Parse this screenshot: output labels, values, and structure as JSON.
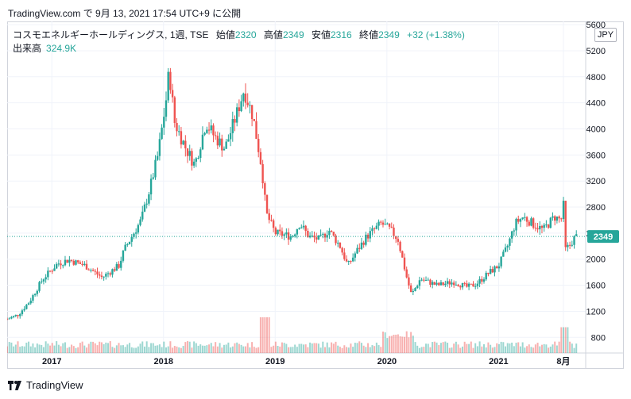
{
  "header": {
    "caption": "TradingView.com で 9月 13, 2021 17:54 UTC+9 に公開"
  },
  "legend": {
    "symbol": "コスモエネルギーホールディングス, 1週, TSE",
    "open_label": "始値",
    "open_value": "2320",
    "high_label": "高値",
    "high_value": "2349",
    "low_label": "安値",
    "low_value": "2316",
    "close_label": "終値",
    "close_value": "2349",
    "change": "+32 (+1.38%)",
    "volume_label": "出来高",
    "volume_value": "324.9K"
  },
  "currency": "JPY",
  "last_price": "2349",
  "footer": {
    "brand": "TradingView"
  },
  "colors": {
    "up": "#26a69a",
    "down": "#ef5350",
    "grid": "#f0f3fa",
    "axis_text": "#131722"
  },
  "chart_data": {
    "type": "candlestick",
    "title": "コスモエネルギーホールディングス, 1週, TSE",
    "xlabel": "",
    "ylabel": "",
    "ylim": [
      560,
      5650
    ],
    "y_ticks": [
      800,
      1200,
      1600,
      2000,
      2400,
      2800,
      3200,
      3600,
      4000,
      4400,
      4800,
      5200,
      5600
    ],
    "x_ticks": [
      {
        "label": "2017",
        "value": 2017.0
      },
      {
        "label": "2018",
        "value": 2018.0
      },
      {
        "label": "2019",
        "value": 2019.0
      },
      {
        "label": "2020",
        "value": 2020.0
      },
      {
        "label": "2021",
        "value": 2021.0
      },
      {
        "label": "8月",
        "value": 2021.58
      }
    ],
    "x_range": [
      2016.6,
      2021.78
    ],
    "price_path": [
      [
        2016.6,
        1080
      ],
      [
        2016.7,
        1150
      ],
      [
        2016.8,
        1350
      ],
      [
        2016.92,
        1700
      ],
      [
        2017.05,
        1930
      ],
      [
        2017.15,
        1990
      ],
      [
        2017.3,
        1900
      ],
      [
        2017.45,
        1720
      ],
      [
        2017.6,
        1900
      ],
      [
        2017.65,
        2150
      ],
      [
        2017.8,
        2600
      ],
      [
        2017.88,
        3100
      ],
      [
        2017.95,
        3600
      ],
      [
        2018.02,
        4400
      ],
      [
        2018.05,
        4900
      ],
      [
        2018.1,
        4100
      ],
      [
        2018.2,
        3700
      ],
      [
        2018.28,
        3450
      ],
      [
        2018.38,
        4100
      ],
      [
        2018.45,
        3900
      ],
      [
        2018.55,
        3700
      ],
      [
        2018.65,
        4200
      ],
      [
        2018.72,
        4600
      ],
      [
        2018.8,
        4200
      ],
      [
        2018.88,
        3400
      ],
      [
        2018.92,
        2700
      ],
      [
        2019.0,
        2400
      ],
      [
        2019.15,
        2350
      ],
      [
        2019.22,
        2550
      ],
      [
        2019.3,
        2350
      ],
      [
        2019.4,
        2300
      ],
      [
        2019.48,
        2450
      ],
      [
        2019.58,
        2200
      ],
      [
        2019.65,
        1900
      ],
      [
        2019.72,
        2100
      ],
      [
        2019.82,
        2350
      ],
      [
        2019.95,
        2550
      ],
      [
        2020.03,
        2450
      ],
      [
        2020.1,
        2300
      ],
      [
        2020.18,
        1700
      ],
      [
        2020.22,
        1450
      ],
      [
        2020.3,
        1700
      ],
      [
        2020.45,
        1600
      ],
      [
        2020.6,
        1650
      ],
      [
        2020.72,
        1570
      ],
      [
        2020.8,
        1620
      ],
      [
        2020.92,
        1800
      ],
      [
        2021.0,
        1900
      ],
      [
        2021.08,
        2200
      ],
      [
        2021.15,
        2550
      ],
      [
        2021.22,
        2650
      ],
      [
        2021.3,
        2550
      ],
      [
        2021.4,
        2450
      ],
      [
        2021.5,
        2650
      ],
      [
        2021.56,
        2600
      ],
      [
        2021.58,
        2850
      ],
      [
        2021.6,
        2150
      ],
      [
        2021.63,
        2200
      ],
      [
        2021.68,
        2330
      ],
      [
        2021.7,
        2349
      ]
    ],
    "volume_scale_ticks": "none"
  }
}
